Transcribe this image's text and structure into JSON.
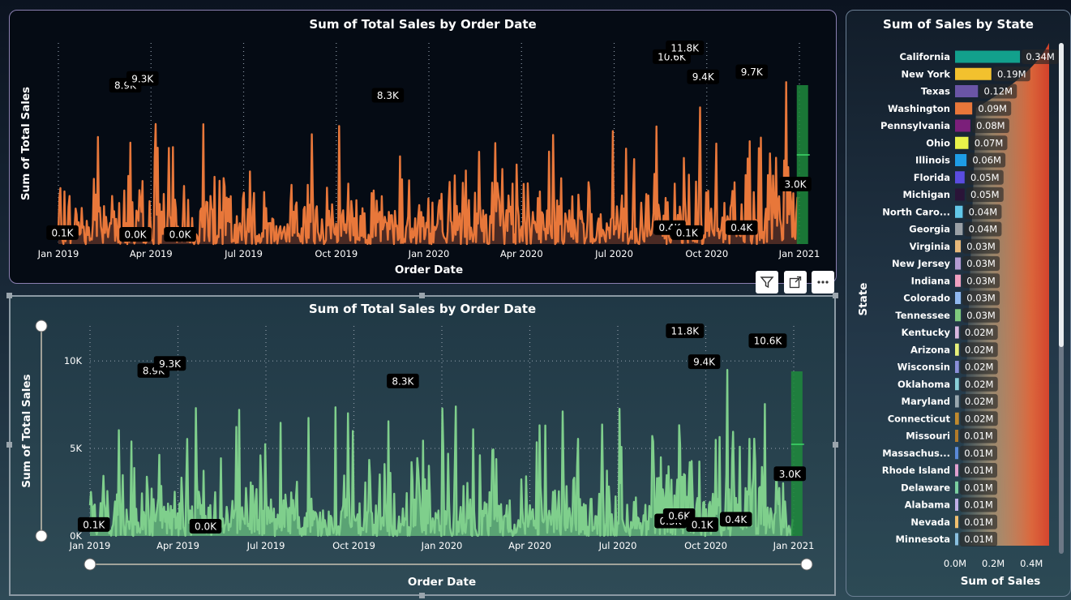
{
  "top_chart": {
    "title": "Sum of Total Sales by Order Date",
    "xlabel": "Order Date",
    "ylabel": "Sum of Total Sales"
  },
  "bottom_chart": {
    "title": "Sum of Total Sales by Order Date",
    "xlabel": "Order Date",
    "ylabel": "Sum of Total Sales"
  },
  "state_chart": {
    "title": "Sum of Sales by State",
    "xlabel": "Sum of Sales",
    "ylabel": "State"
  },
  "colors": {
    "top_line": "#e8773a",
    "bottom_line": "#7fcf8c",
    "forecast": "#1e8a3c"
  },
  "icons": [
    "filter-icon",
    "focus-mode-icon",
    "more-options-icon"
  ],
  "chart_data": [
    {
      "type": "area",
      "title": "Sum of Total Sales by Order Date",
      "xlabel": "Order Date",
      "ylabel": "Sum of Total Sales",
      "x_ticks": [
        "Jan 2019",
        "Apr 2019",
        "Jul 2019",
        "Oct 2019",
        "Jan 2020",
        "Apr 2020",
        "Jul 2020",
        "Oct 2020",
        "Jan 2021"
      ],
      "x_range": [
        "2019-01-01",
        "2021-01-01"
      ],
      "ylim": [
        0,
        12000
      ],
      "grid": "vertical dotted",
      "annotations": [
        {
          "date": "2019-01-05",
          "value": 100,
          "label": "0.1K"
        },
        {
          "date": "2019-03-08",
          "value": 8900,
          "label": "8.9K"
        },
        {
          "date": "2019-03-25",
          "value": 9300,
          "label": "9.3K"
        },
        {
          "date": "2019-03-18",
          "value": 0,
          "label": "0.0K"
        },
        {
          "date": "2019-05-01",
          "value": 0,
          "label": "0.0K"
        },
        {
          "date": "2019-11-22",
          "value": 8300,
          "label": "8.3K"
        },
        {
          "date": "2020-08-28",
          "value": 10600,
          "label": "10.6K"
        },
        {
          "date": "2020-09-10",
          "value": 11800,
          "label": "11.8K"
        },
        {
          "date": "2020-08-26",
          "value": 400,
          "label": "0.4K"
        },
        {
          "date": "2020-09-12",
          "value": 100,
          "label": "0.1K"
        },
        {
          "date": "2020-09-28",
          "value": 9400,
          "label": "9.4K"
        },
        {
          "date": "2020-11-15",
          "value": 9700,
          "label": "9.7K"
        },
        {
          "date": "2020-11-05",
          "value": 400,
          "label": "0.4K"
        },
        {
          "date": "2020-12-28",
          "value": 3000,
          "label": "3.0K"
        }
      ]
    },
    {
      "type": "area",
      "title": "Sum of Total Sales by Order Date",
      "xlabel": "Order Date",
      "ylabel": "Sum of Total Sales",
      "x_ticks": [
        "Jan 2019",
        "Apr 2019",
        "Jul 2019",
        "Oct 2019",
        "Jan 2020",
        "Apr 2020",
        "Jul 2020",
        "Oct 2020",
        "Jan 2021"
      ],
      "y_ticks": [
        "0K",
        "5K",
        "10K"
      ],
      "x_range": [
        "2019-01-01",
        "2021-01-01"
      ],
      "ylim": [
        0,
        12000
      ],
      "grid": "dotted",
      "annotations": [
        {
          "date": "2019-01-05",
          "value": 100,
          "label": "0.1K"
        },
        {
          "date": "2019-03-08",
          "value": 8900,
          "label": "8.9K"
        },
        {
          "date": "2019-03-25",
          "value": 9300,
          "label": "9.3K"
        },
        {
          "date": "2019-05-01",
          "value": 0,
          "label": "0.0K"
        },
        {
          "date": "2019-11-22",
          "value": 8300,
          "label": "8.3K"
        },
        {
          "date": "2020-08-26",
          "value": 300,
          "label": "0.3K"
        },
        {
          "date": "2020-09-10",
          "value": 11800,
          "label": "11.8K"
        },
        {
          "date": "2020-09-04",
          "value": 600,
          "label": "0.6K"
        },
        {
          "date": "2020-09-28",
          "value": 100,
          "label": "0.1K"
        },
        {
          "date": "2020-09-30",
          "value": 9400,
          "label": "9.4K"
        },
        {
          "date": "2020-11-02",
          "value": 400,
          "label": "0.4K"
        },
        {
          "date": "2020-12-05",
          "value": 10600,
          "label": "10.6K"
        },
        {
          "date": "2020-12-28",
          "value": 3000,
          "label": "3.0K"
        }
      ]
    },
    {
      "type": "bar",
      "orientation": "horizontal",
      "title": "Sum of Sales by State",
      "xlabel": "Sum of Sales",
      "ylabel": "State",
      "x_ticks": [
        "0.0M",
        "0.2M",
        "0.4M"
      ],
      "xlim": [
        0,
        0.45
      ],
      "categories": [
        "California",
        "New York",
        "Texas",
        "Washington",
        "Pennsylvania",
        "Ohio",
        "Illinois",
        "Florida",
        "Michigan",
        "North Caro...",
        "Georgia",
        "Virginia",
        "New Jersey",
        "Indiana",
        "Colorado",
        "Tennessee",
        "Kentucky",
        "Arizona",
        "Wisconsin",
        "Oklahoma",
        "Maryland",
        "Connecticut",
        "Missouri",
        "Massachus...",
        "Rhode Island",
        "Delaware",
        "Alabama",
        "Nevada",
        "Minnesota"
      ],
      "values": [
        0.34,
        0.19,
        0.12,
        0.09,
        0.08,
        0.07,
        0.06,
        0.05,
        0.05,
        0.04,
        0.04,
        0.03,
        0.03,
        0.03,
        0.03,
        0.03,
        0.02,
        0.02,
        0.02,
        0.02,
        0.02,
        0.02,
        0.01,
        0.01,
        0.01,
        0.01,
        0.01,
        0.01,
        0.01
      ],
      "value_labels": [
        "0.34M",
        "0.19M",
        "0.12M",
        "0.09M",
        "0.08M",
        "0.07M",
        "0.06M",
        "0.05M",
        "0.05M",
        "0.04M",
        "0.04M",
        "0.03M",
        "0.03M",
        "0.03M",
        "0.03M",
        "0.03M",
        "0.02M",
        "0.02M",
        "0.02M",
        "0.02M",
        "0.02M",
        "0.02M",
        "0.01M",
        "0.01M",
        "0.01M",
        "0.01M",
        "0.01M",
        "0.01M",
        "0.01M"
      ],
      "colors": [
        "#12a08c",
        "#f2c12e",
        "#6a55a6",
        "#e8773a",
        "#7b1f7a",
        "#e9f24a",
        "#1e9de6",
        "#5a4ce0",
        "#2a1438",
        "#62c7e8",
        "#9aa0a6",
        "#e6b87a",
        "#b39bd1",
        "#f0a0c0",
        "#8fb8f0",
        "#7ec97e",
        "#d8b8e0",
        "#e6f07a",
        "#8a8fd8",
        "#8ad0d8",
        "#9aa8b0",
        "#c08a2e",
        "#b07a2a",
        "#5a8ad8",
        "#e0a0d0",
        "#7ad0a0",
        "#c0b0e8",
        "#f0c070",
        "#8ac0e0"
      ]
    }
  ]
}
